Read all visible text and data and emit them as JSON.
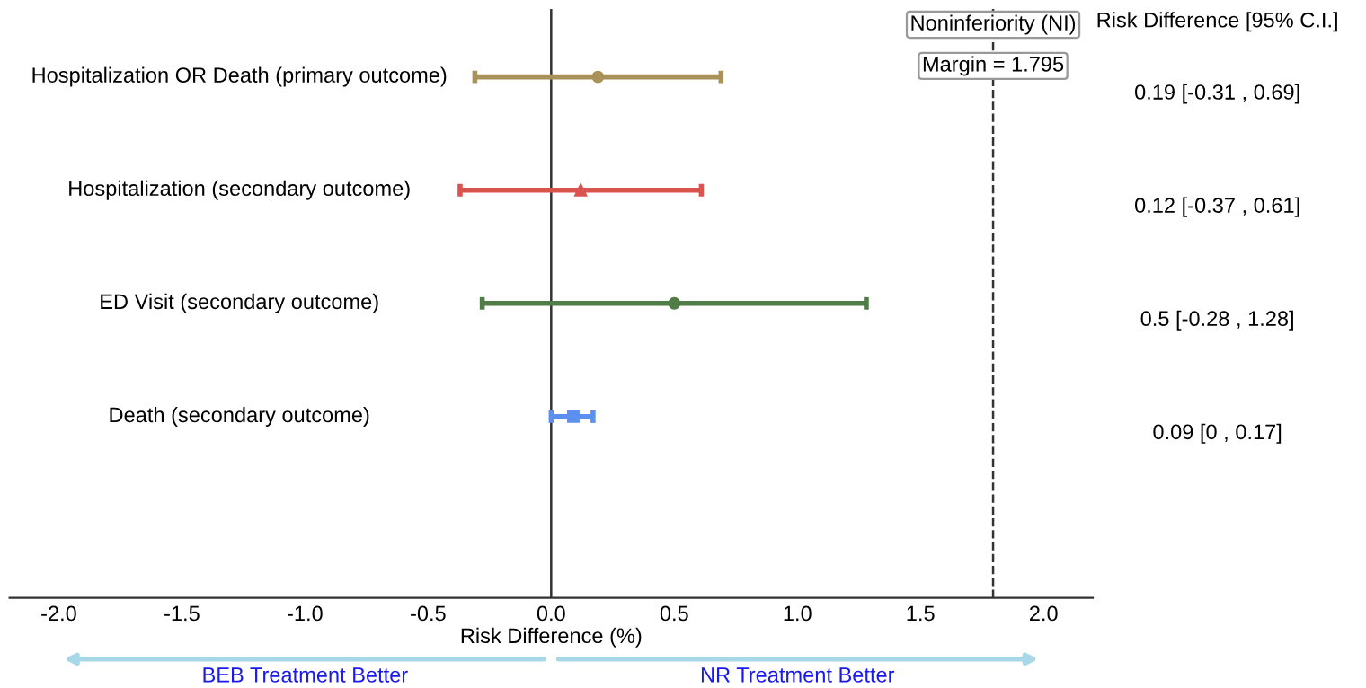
{
  "chart_data": {
    "type": "scatter",
    "orientation": "horizontal",
    "xlabel": "Risk Difference (%)",
    "categories": [
      "Hospitalization OR Death (primary outcome)",
      "Hospitalization (secondary outcome)",
      "ED Visit (secondary outcome)",
      "Death (secondary outcome)"
    ],
    "series": [
      {
        "color": "#a8925a",
        "marker": "circle",
        "values": [
          0.19,
          null,
          null,
          null
        ],
        "errors": [
          [
            -0.31,
            0.69
          ],
          null,
          null,
          null
        ]
      },
      {
        "color": "#d9534f",
        "marker": "triangle",
        "values": [
          null,
          0.12,
          null,
          null
        ],
        "errors": [
          null,
          [
            -0.37,
            0.61
          ],
          null,
          null
        ]
      },
      {
        "color": "#4f7d45",
        "marker": "circle",
        "values": [
          null,
          null,
          0.5,
          null
        ],
        "errors": [
          null,
          null,
          [
            -0.28,
            1.28
          ],
          null
        ]
      },
      {
        "color": "#5b8ff0",
        "marker": "square",
        "values": [
          null,
          null,
          null,
          0.09
        ],
        "errors": [
          null,
          null,
          null,
          [
            0,
            0.17
          ]
        ]
      }
    ],
    "xlim": [
      -2.2,
      2.2
    ],
    "xticks": [
      {
        "value": -2,
        "label": "-2.0"
      },
      {
        "value": -1.5,
        "label": "-1.5"
      },
      {
        "value": -1,
        "label": "-1.0"
      },
      {
        "value": -0.5,
        "label": "-0.5"
      },
      {
        "value": 0,
        "label": "0.0"
      },
      0.5,
      {
        "value": 1,
        "label": "1.0"
      },
      1.5,
      {
        "value": 2,
        "label": "2.0"
      }
    ],
    "ref_lines": [
      {
        "axis": "x",
        "value": 0,
        "line_style": "solid",
        "color": "#333333"
      },
      {
        "axis": "x",
        "value": 1.795,
        "label": "Noninferiority (NI)\nMargin = 1.795",
        "line_style": "dashed",
        "color": "#333333"
      }
    ],
    "annotations": [
      "Risk Difference [95% C.I.]",
      "0.19 [-0.31 , 0.69]",
      "0.12 [-0.37 , 0.61]",
      "0.5 [-0.28 , 1.28]",
      "0.09 [0 , 0.17]",
      "BEB Treatment Better",
      "NR Treatment Better"
    ],
    "legend": false
  }
}
